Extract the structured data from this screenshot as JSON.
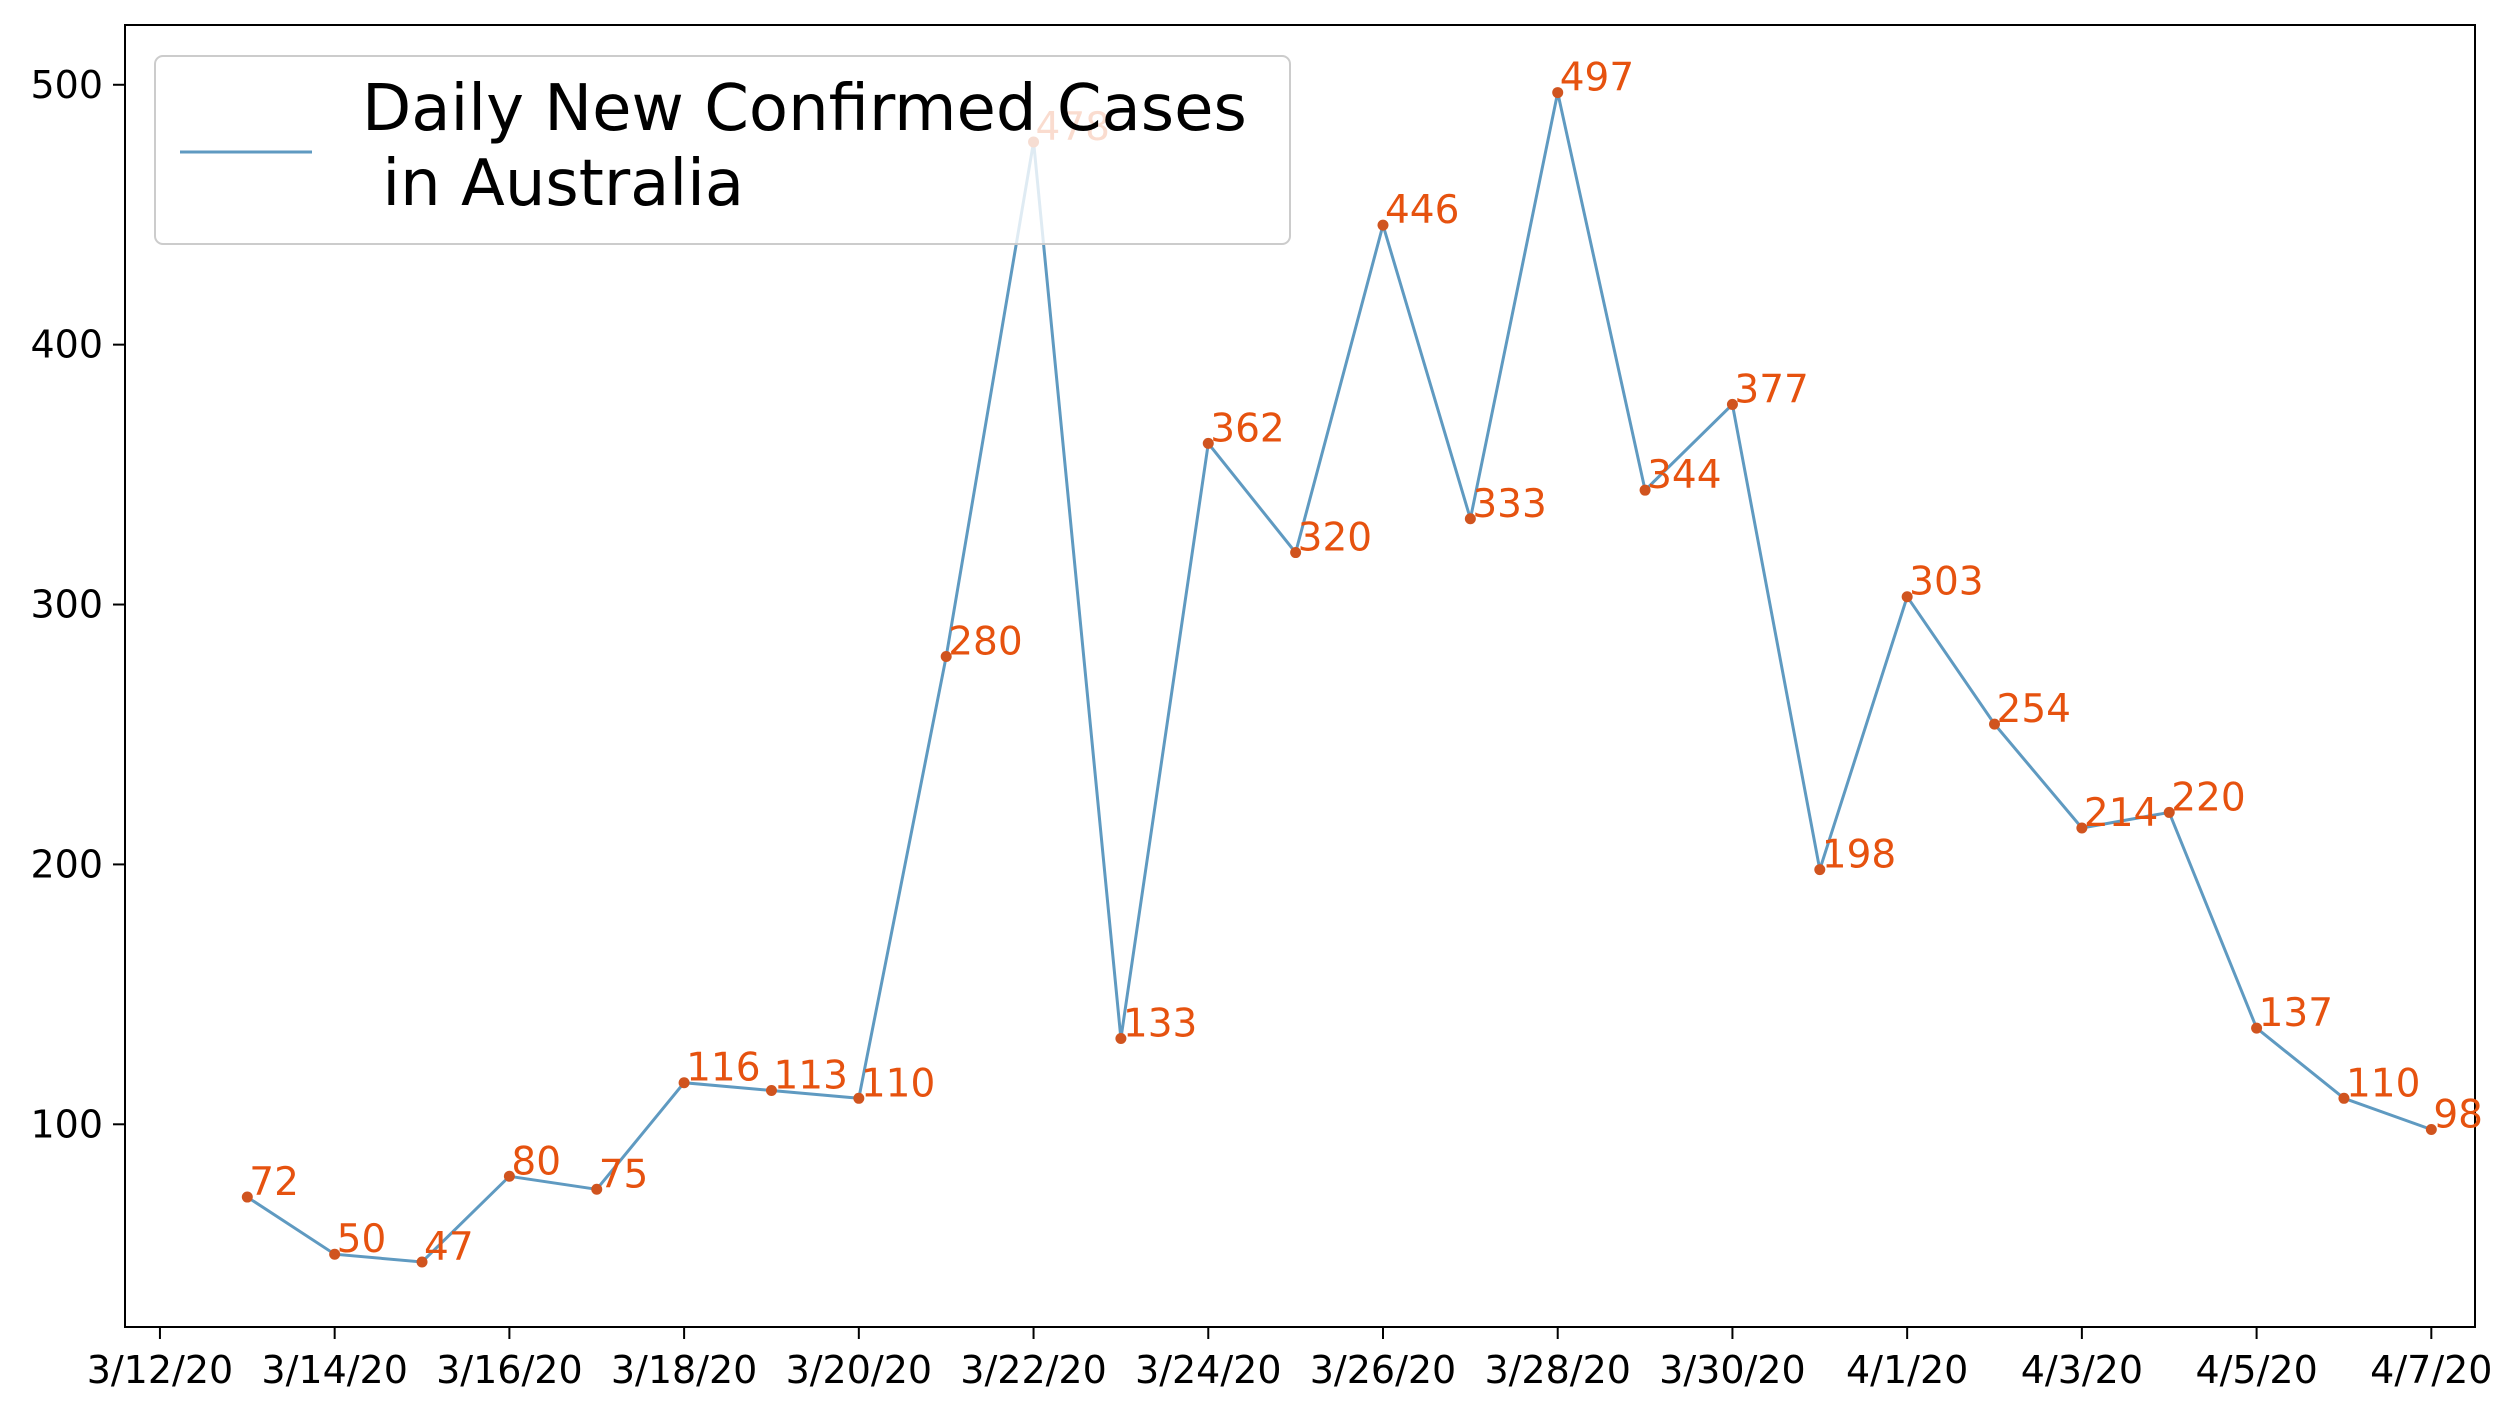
{
  "chart_data": {
    "type": "line",
    "x": [
      "3/13/20",
      "3/14/20",
      "3/15/20",
      "3/16/20",
      "3/17/20",
      "3/18/20",
      "3/19/20",
      "3/20/20",
      "3/21/20",
      "3/22/20",
      "3/23/20",
      "3/24/20",
      "3/25/20",
      "3/26/20",
      "3/27/20",
      "3/28/20",
      "3/29/20",
      "3/30/20",
      "3/31/20",
      "4/1/20",
      "4/2/20",
      "4/3/20",
      "4/4/20",
      "4/5/20",
      "4/6/20",
      "4/7/20"
    ],
    "series": [
      {
        "name": "Daily New Confirmed Cases\n in Australia",
        "values": [
          72,
          50,
          47,
          80,
          75,
          116,
          113,
          110,
          280,
          478,
          133,
          362,
          320,
          446,
          333,
          497,
          344,
          377,
          198,
          303,
          254,
          214,
          220,
          137,
          110,
          98
        ]
      }
    ],
    "data_labels": [
      "72",
      "50",
      "47",
      "80",
      "75",
      "116",
      "113",
      "110",
      "280",
      "478",
      "133",
      "362",
      "320",
      "446",
      "333",
      "497",
      "344",
      "377",
      "198",
      "303",
      "254",
      "214",
      "220",
      "137",
      "110",
      "98"
    ],
    "xticks": [
      "3/12/20",
      "3/14/20",
      "3/16/20",
      "3/18/20",
      "3/20/20",
      "3/22/20",
      "3/24/20",
      "3/26/20",
      "3/28/20",
      "3/30/20",
      "4/1/20",
      "4/3/20",
      "4/5/20",
      "4/7/20"
    ],
    "yticks": [
      "100",
      "200",
      "300",
      "400",
      "500"
    ],
    "xlim": [
      "3/11/20",
      "4/8/20"
    ],
    "ylim": [
      22,
      523
    ],
    "title": "",
    "xlabel": "",
    "ylabel": "",
    "grid": false,
    "legend": {
      "position": "top-left",
      "lines": [
        "Daily New Confirmed Cases",
        " in Australia"
      ]
    },
    "colors": {
      "line": "#5f9ac1",
      "marker": "#d0541f",
      "label": "#e6520f"
    }
  }
}
